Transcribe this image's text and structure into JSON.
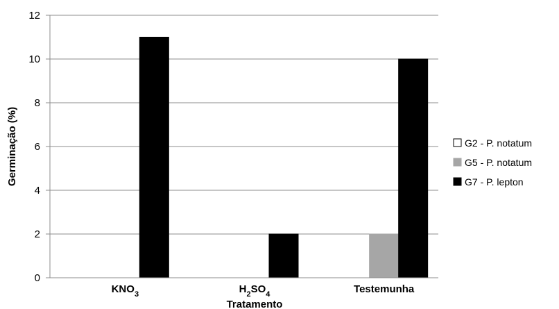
{
  "chart_data": {
    "type": "bar",
    "categories": [
      {
        "base": "KNO",
        "sub": "3",
        "tail": ""
      },
      {
        "base": "H",
        "sub": "2",
        "mid": "SO",
        "sub2": "4"
      },
      {
        "base": "Testemunha"
      }
    ],
    "category_text": [
      "KNO3",
      "H2SO4",
      "Testemunha"
    ],
    "series": [
      {
        "name": "G2 - P. notatum",
        "color": "#ffffff",
        "stroke": "#000000",
        "values": [
          0,
          0,
          0
        ]
      },
      {
        "name": "G5 - P. notatum",
        "color": "#a6a6a6",
        "stroke": "#a6a6a6",
        "values": [
          0,
          0,
          2
        ]
      },
      {
        "name": "G7 - P. lepton",
        "color": "#000000",
        "stroke": "#000000",
        "values": [
          11,
          2,
          10
        ]
      }
    ],
    "xlabel": "Tratamento",
    "ylabel": "Germinação (%)",
    "ylim": [
      0,
      12
    ],
    "yticks": [
      0,
      2,
      4,
      6,
      8,
      10,
      12
    ],
    "grid": true,
    "legend_position": "right"
  }
}
